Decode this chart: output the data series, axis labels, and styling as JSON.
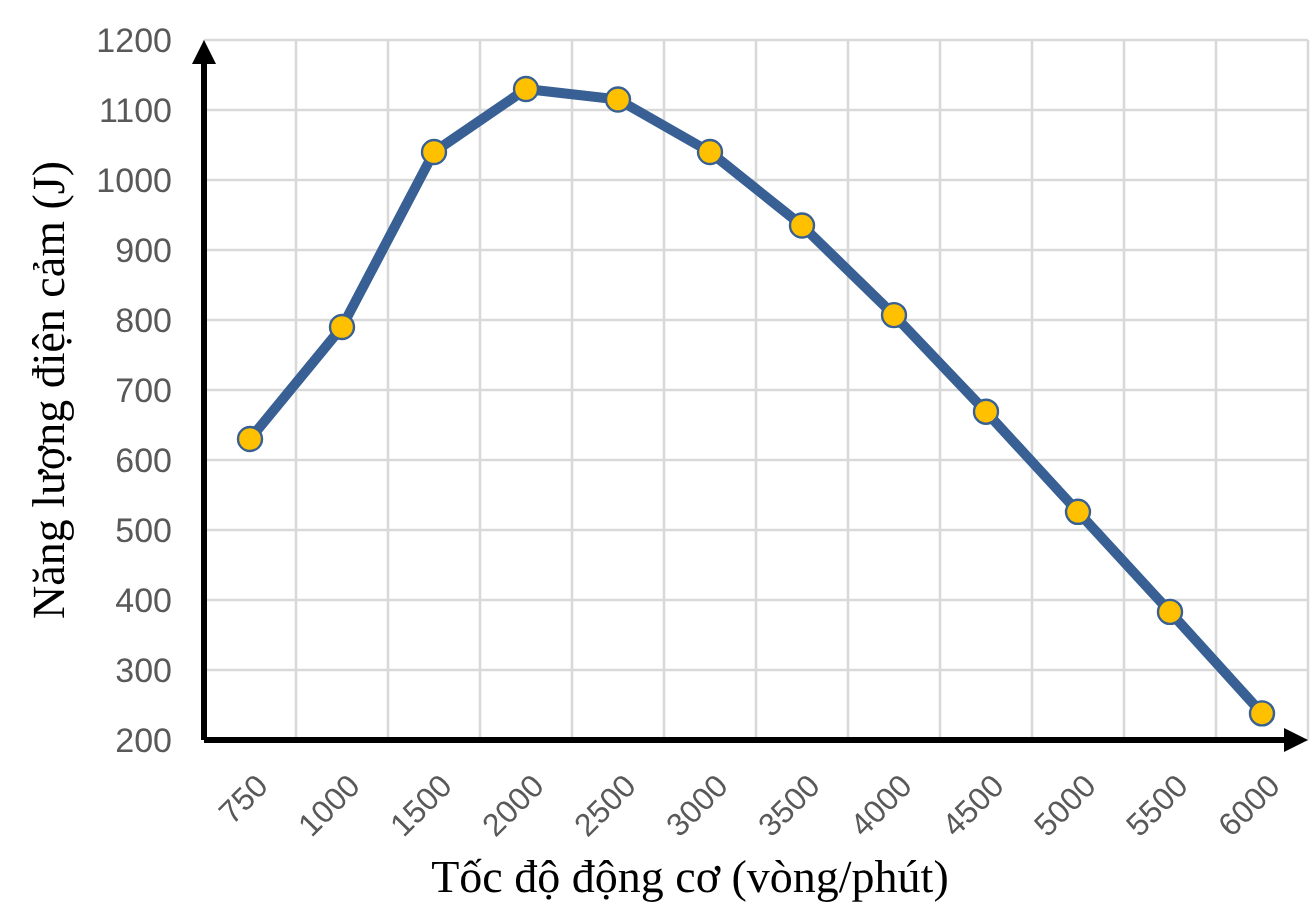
{
  "chart_data": {
    "type": "line",
    "xlabel": "Tốc độ động cơ (vòng/phút)",
    "ylabel": "Năng lượng điện cảm (J)",
    "categories": [
      "750",
      "1000",
      "1500",
      "2000",
      "2500",
      "3000",
      "3500",
      "4000",
      "4500",
      "5000",
      "5500",
      "6000"
    ],
    "series": [
      {
        "color": "#386094",
        "values": [
          630,
          790,
          1040,
          1130,
          1115,
          1040,
          935,
          807,
          669,
          526,
          383,
          238
        ]
      }
    ],
    "ylim": [
      200,
      1200
    ],
    "yticks": [
      200,
      300,
      400,
      500,
      600,
      700,
      800,
      900,
      1000,
      1100,
      1200
    ],
    "grid": true,
    "marker": "circle",
    "line_style": "solid"
  }
}
